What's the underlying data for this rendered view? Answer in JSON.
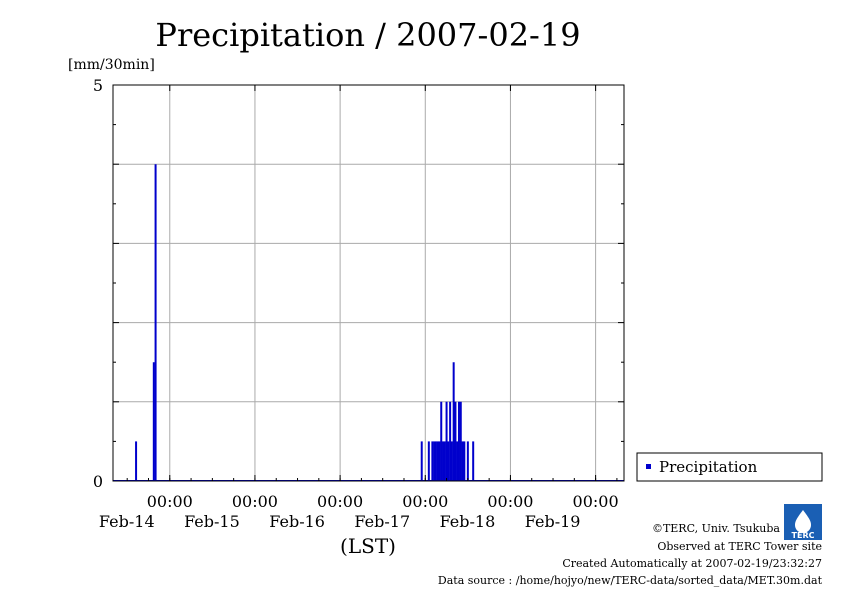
{
  "chart_data": {
    "type": "bar",
    "title": "Precipitation / 2007-02-19",
    "ylabel": "[mm/30min]",
    "xlabel": "(LST)",
    "ylim": [
      0,
      5
    ],
    "y_ticks": [
      "0",
      "5"
    ],
    "xlim": [
      "2007-02-13 08:00",
      "2007-02-19 08:00"
    ],
    "x_ticks": [
      {
        "time": "2007-02-14 00:00",
        "label_time": "00:00",
        "label_date": "Feb-14"
      },
      {
        "time": "2007-02-15 00:00",
        "label_time": "00:00",
        "label_date": "Feb-15"
      },
      {
        "time": "2007-02-16 00:00",
        "label_time": "00:00",
        "label_date": "Feb-16"
      },
      {
        "time": "2007-02-17 00:00",
        "label_time": "00:00",
        "label_date": "Feb-17"
      },
      {
        "time": "2007-02-18 00:00",
        "label_time": "00:00",
        "label_date": "Feb-18"
      },
      {
        "time": "2007-02-19 00:00",
        "label_time": "00:00",
        "label_date": "Feb-19"
      }
    ],
    "grid": true,
    "legend_position": "right",
    "series": [
      {
        "name": "Precipitation",
        "color": "#0000cc",
        "points": [
          {
            "t": "2007-02-13 14:30",
            "v": 0.5
          },
          {
            "t": "2007-02-13 19:30",
            "v": 1.5
          },
          {
            "t": "2007-02-13 20:00",
            "v": 4.0
          },
          {
            "t": "2007-02-16 23:00",
            "v": 0.5
          },
          {
            "t": "2007-02-17 01:00",
            "v": 0.5
          },
          {
            "t": "2007-02-17 02:00",
            "v": 0.5
          },
          {
            "t": "2007-02-17 02:30",
            "v": 0.5
          },
          {
            "t": "2007-02-17 03:00",
            "v": 0.5
          },
          {
            "t": "2007-02-17 03:30",
            "v": 0.5
          },
          {
            "t": "2007-02-17 04:00",
            "v": 0.5
          },
          {
            "t": "2007-02-17 04:30",
            "v": 1.0
          },
          {
            "t": "2007-02-17 05:00",
            "v": 0.5
          },
          {
            "t": "2007-02-17 05:30",
            "v": 0.5
          },
          {
            "t": "2007-02-17 06:00",
            "v": 1.0
          },
          {
            "t": "2007-02-17 06:30",
            "v": 0.5
          },
          {
            "t": "2007-02-17 07:00",
            "v": 1.0
          },
          {
            "t": "2007-02-17 07:30",
            "v": 0.5
          },
          {
            "t": "2007-02-17 08:00",
            "v": 1.5
          },
          {
            "t": "2007-02-17 08:30",
            "v": 1.0
          },
          {
            "t": "2007-02-17 09:00",
            "v": 0.5
          },
          {
            "t": "2007-02-17 09:30",
            "v": 1.0
          },
          {
            "t": "2007-02-17 10:00",
            "v": 1.0
          },
          {
            "t": "2007-02-17 10:30",
            "v": 0.5
          },
          {
            "t": "2007-02-17 11:00",
            "v": 0.5
          },
          {
            "t": "2007-02-17 12:00",
            "v": 0.5
          },
          {
            "t": "2007-02-17 13:30",
            "v": 0.5
          }
        ]
      }
    ]
  },
  "footer": {
    "copyright": "©TERC, Univ. Tsukuba",
    "site": "Observed at TERC Tower site",
    "created": "Created Automatically at 2007-02-19/23:32:27",
    "source": "Data source : /home/hojyo/new/TERC-data/sorted_data/MET.30m.dat",
    "logo_text": "TERC"
  }
}
